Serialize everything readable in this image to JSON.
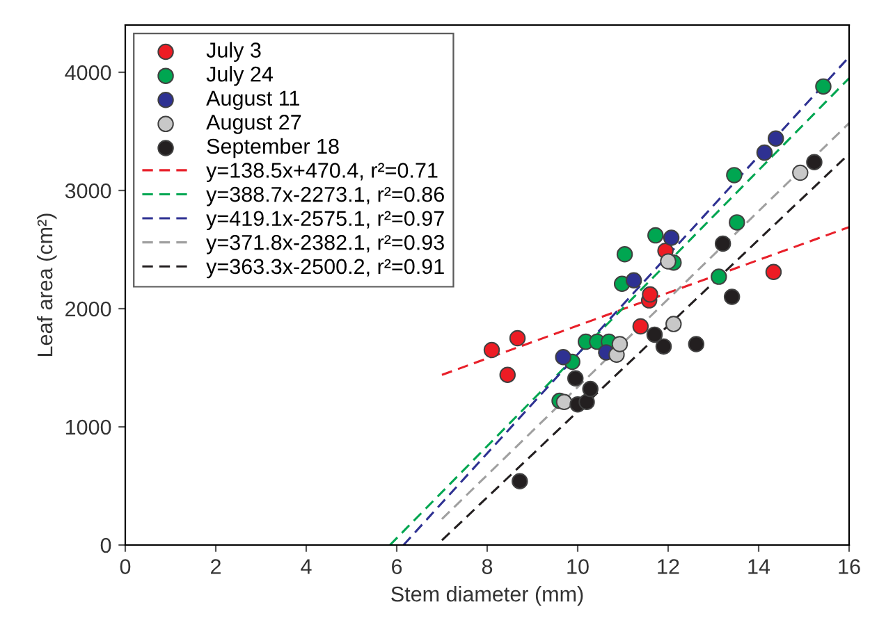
{
  "chart_data": {
    "type": "scatter",
    "xlabel": "Stem diameter (mm)",
    "ylabel": "Leaf area (cm²)",
    "xlim": [
      0,
      16
    ],
    "ylim": [
      0,
      4400
    ],
    "xticks": [
      0,
      2,
      4,
      6,
      8,
      10,
      12,
      14,
      16
    ],
    "yticks": [
      0,
      1000,
      2000,
      3000,
      4000
    ],
    "grid": false,
    "legend": "top left",
    "marker": "circle",
    "series": [
      {
        "name": "July 3",
        "color": "#ed1c24",
        "x": [
          8.1,
          8.45,
          8.67,
          11.39,
          11.58,
          11.6,
          11.94,
          14.33
        ],
        "values": [
          1650,
          1440,
          1750,
          1850,
          2070,
          2120,
          2490,
          2310
        ]
      },
      {
        "name": "July 24",
        "color": "#00a651",
        "x": [
          9.6,
          9.88,
          10.18,
          10.43,
          10.69,
          10.98,
          11.04,
          11.72,
          12.12,
          13.12,
          13.46,
          13.52,
          15.43
        ],
        "values": [
          1220,
          1550,
          1720,
          1720,
          1720,
          2210,
          2460,
          2620,
          2390,
          2270,
          3130,
          2730,
          3880
        ]
      },
      {
        "name": "August 11",
        "color": "#2e3192",
        "x": [
          9.68,
          10.63,
          11.24,
          12.07,
          14.13,
          14.38
        ],
        "values": [
          1590,
          1630,
          2240,
          2600,
          3320,
          3440
        ]
      },
      {
        "name": "August 27",
        "color": "#c8c8c8",
        "x": [
          9.7,
          10.86,
          10.93,
          12.0,
          12.12,
          14.92
        ],
        "values": [
          1210,
          1610,
          1700,
          2400,
          1870,
          3150
        ]
      },
      {
        "name": "September 18",
        "color": "#231f20",
        "x": [
          8.72,
          9.95,
          10.0,
          10.2,
          10.28,
          11.7,
          11.9,
          12.62,
          13.21,
          13.41,
          15.23
        ],
        "values": [
          540,
          1410,
          1190,
          1210,
          1320,
          1780,
          1680,
          1700,
          2550,
          2100,
          3240
        ]
      },
      {
        "name": "y=138.5x+470.4, r²=0.71",
        "type": "line",
        "line_style": "dashed",
        "marker": "none",
        "color": "#e8202a",
        "x": [
          7,
          16
        ],
        "values": [
          1440,
          2690
        ]
      },
      {
        "name": "y=388.7x-2273.1, r²=0.86",
        "type": "line",
        "line_style": "dashed",
        "marker": "none",
        "color": "#00a651",
        "x": [
          5.85,
          16
        ],
        "values": [
          0,
          3950
        ]
      },
      {
        "name": "y=419.1x-2575.1, r²=0.97",
        "type": "line",
        "line_style": "dashed",
        "marker": "none",
        "color": "#2e3192",
        "x": [
          6.15,
          16
        ],
        "values": [
          0,
          4130
        ]
      },
      {
        "name": "y=371.8x-2382.1, r²=0.93",
        "type": "line",
        "line_style": "dashed",
        "marker": "none",
        "color": "#a0a0a0",
        "x": [
          7,
          16
        ],
        "values": [
          220,
          3570
        ]
      },
      {
        "name": "y=363.3x-2500.2, r²=0.91",
        "type": "line",
        "line_style": "dashed",
        "marker": "none",
        "color": "#231f20",
        "x": [
          7,
          16
        ],
        "values": [
          40,
          3310
        ]
      }
    ]
  }
}
